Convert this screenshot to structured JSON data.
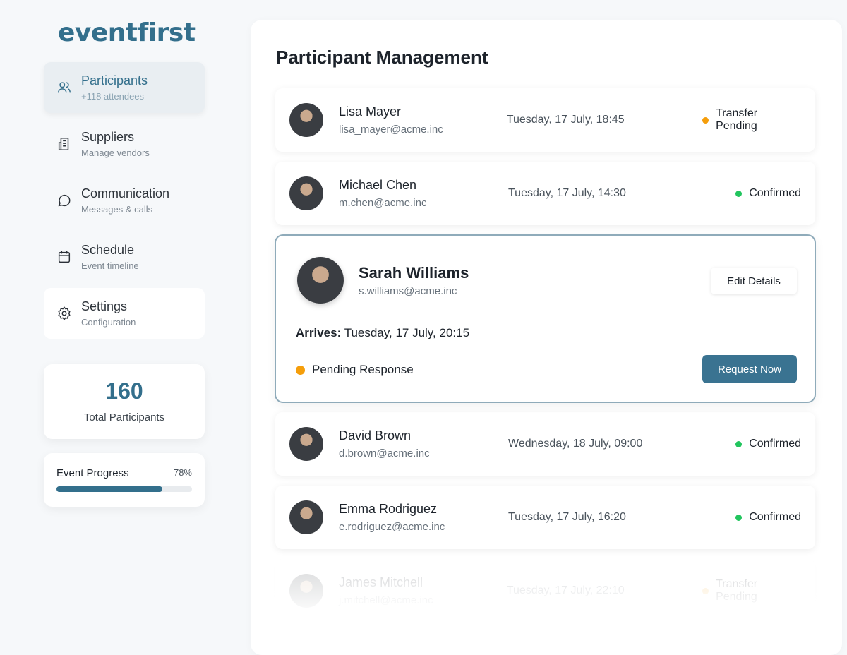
{
  "brand": {
    "logo": "eventfirst",
    "color": "#336f8c"
  },
  "sidebar": {
    "items": [
      {
        "label": "Participants",
        "sub": "+118 attendees",
        "icon": "users-icon"
      },
      {
        "label": "Suppliers",
        "sub": "Manage vendors",
        "icon": "building-icon"
      },
      {
        "label": "Communication",
        "sub": "Messages & calls",
        "icon": "chat-bubble-icon"
      },
      {
        "label": "Schedule",
        "sub": "Event timeline",
        "icon": "calendar-icon"
      },
      {
        "label": "Settings",
        "sub": "Configuration",
        "icon": "gear-icon"
      }
    ]
  },
  "stats": {
    "total": "160",
    "total_label": "Total Participants",
    "progress_label": "Event Progress",
    "progress_text": "78%",
    "progress": 78
  },
  "main": {
    "title": "Participant Management",
    "participants": [
      {
        "name": "Lisa Mayer",
        "email": "lisa_mayer@acme.inc",
        "date": "Tuesday, 17 July, 18:45",
        "status": "Transfer Pending",
        "status_color": "#f59e0b"
      },
      {
        "name": "Michael Chen",
        "email": "m.chen@acme.inc",
        "date": "Tuesday, 17 July, 14:30",
        "status": "Confirmed",
        "status_color": "#22c55e"
      },
      {
        "name": "David Brown",
        "email": "d.brown@acme.inc",
        "date": "Wednesday, 18 July, 09:00",
        "status": "Confirmed",
        "status_color": "#22c55e"
      },
      {
        "name": "Emma Rodriguez",
        "email": "e.rodriguez@acme.inc",
        "date": "Tuesday, 17 July, 16:20",
        "status": "Confirmed",
        "status_color": "#22c55e"
      },
      {
        "name": "James Mitchell",
        "email": "j.mitchell@acme.inc",
        "date": "Tuesday, 17 July, 22:10",
        "status": "Transfer Pending",
        "status_color": "#f59e0b"
      }
    ],
    "selected": {
      "name": "Sarah Williams",
      "email": "s.williams@acme.inc",
      "arrives_label": "Arrives:",
      "arrives": "Tuesday, 17 July, 20:15",
      "status": "Pending Response",
      "status_color": "#f59e0b",
      "edit_label": "Edit Details",
      "request_label": "Request Now"
    }
  }
}
